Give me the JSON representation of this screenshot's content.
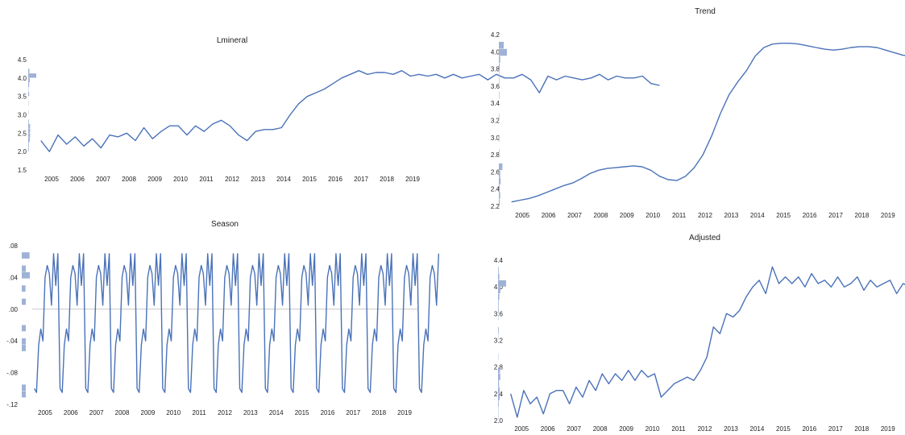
{
  "chart_data": [
    {
      "id": "lmineral",
      "type": "line",
      "title": "Lmineral",
      "xlabel": "",
      "ylabel": "",
      "xlim": [
        2004.5,
        2019.5
      ],
      "ylim": [
        1.5,
        4.5
      ],
      "yticks": [
        "1.5",
        "2.0",
        "2.5",
        "3.0",
        "3.5",
        "4.0",
        "4.5"
      ],
      "xticks": [
        "2005",
        "2006",
        "2007",
        "2008",
        "2009",
        "2010",
        "2011",
        "2012",
        "2013",
        "2014",
        "2015",
        "2016",
        "2017",
        "2018",
        "2019"
      ],
      "marginal_histogram": true,
      "series_color": "#4a72b8",
      "series": [
        {
          "x_start": 2004.583,
          "x_step": 0.3333,
          "values": [
            2.3,
            2.0,
            2.45,
            2.2,
            2.4,
            2.15,
            2.35,
            2.1,
            2.45,
            2.4,
            2.5,
            2.3,
            2.65,
            2.35,
            2.55,
            2.7,
            2.7,
            2.45,
            2.7,
            2.55,
            2.75,
            2.85,
            2.7,
            2.45,
            2.3,
            2.55,
            2.6,
            2.6,
            2.65,
            3.0,
            3.3,
            3.5,
            3.6,
            3.7,
            3.85,
            4.0,
            4.1,
            4.2,
            4.1,
            4.15,
            4.15,
            4.1,
            4.2,
            4.05,
            4.1,
            4.05,
            4.1,
            4.0,
            4.1,
            4.0,
            4.05,
            4.1,
            3.95,
            4.1,
            4.0,
            4.0,
            4.1,
            3.95,
            3.6,
            4.05,
            3.95,
            4.05,
            4.0,
            3.95,
            4.0,
            4.1,
            3.95,
            4.05,
            4.0,
            4.0,
            4.05,
            3.85,
            3.8
          ]
        }
      ]
    },
    {
      "id": "trend",
      "type": "line",
      "title": "Trend",
      "xlabel": "",
      "ylabel": "",
      "xlim": [
        2004.5,
        2019.5
      ],
      "ylim": [
        2.2,
        4.2
      ],
      "yticks": [
        "2.2",
        "2.4",
        "2.6",
        "2.8",
        "3.0",
        "3.2",
        "3.4",
        "3.6",
        "3.8",
        "4.0",
        "4.2"
      ],
      "xticks": [
        "2005",
        "2006",
        "2007",
        "2008",
        "2009",
        "2010",
        "2011",
        "2012",
        "2013",
        "2014",
        "2015",
        "2016",
        "2017",
        "2018",
        "2019"
      ],
      "marginal_histogram": true,
      "series_color": "#4a72b8",
      "series": [
        {
          "x_start": 2004.583,
          "x_step": 0.3333,
          "values": [
            2.25,
            2.27,
            2.29,
            2.32,
            2.36,
            2.4,
            2.44,
            2.47,
            2.52,
            2.58,
            2.62,
            2.64,
            2.65,
            2.66,
            2.67,
            2.66,
            2.62,
            2.55,
            2.51,
            2.5,
            2.55,
            2.65,
            2.8,
            3.02,
            3.28,
            3.5,
            3.65,
            3.78,
            3.95,
            4.05,
            4.09,
            4.1,
            4.1,
            4.09,
            4.07,
            4.05,
            4.03,
            4.02,
            4.03,
            4.05,
            4.06,
            4.06,
            4.05,
            4.02,
            3.99,
            3.96,
            3.95,
            3.95,
            3.95,
            3.94,
            3.95,
            3.96,
            3.96,
            3.96,
            3.96,
            3.96,
            3.97,
            3.96,
            3.93,
            3.88,
            3.85,
            3.82
          ]
        }
      ]
    },
    {
      "id": "season",
      "type": "line",
      "title": "Season",
      "xlabel": "",
      "ylabel": "",
      "xlim": [
        2004.5,
        2019.5
      ],
      "ylim": [
        -0.12,
        0.08
      ],
      "yticks": [
        ".08",
        ".04",
        ".00",
        "-.04",
        "-.08",
        "-.12"
      ],
      "xticks": [
        "2005",
        "2006",
        "2007",
        "2008",
        "2009",
        "2010",
        "2011",
        "2012",
        "2013",
        "2014",
        "2015",
        "2016",
        "2017",
        "2018",
        "2019"
      ],
      "zero_line": true,
      "marginal_histogram": true,
      "series_color": "#4a72b8",
      "series": [
        {
          "x_start": 2004.583,
          "x_step": 0.0833,
          "values": [
            -0.1,
            -0.105,
            -0.045,
            -0.025,
            -0.04,
            0.04,
            0.055,
            0.045,
            0.005,
            0.07,
            0.03,
            0.07,
            -0.1,
            -0.105,
            -0.045,
            -0.025,
            -0.04,
            0.04,
            0.055,
            0.045,
            0.005,
            0.07,
            0.03,
            0.07,
            -0.1,
            -0.105,
            -0.045,
            -0.025,
            -0.04,
            0.04,
            0.055,
            0.045,
            0.005,
            0.07,
            0.03,
            0.07,
            -0.1,
            -0.105,
            -0.045,
            -0.025,
            -0.04,
            0.04,
            0.055,
            0.045,
            0.005,
            0.07,
            0.03,
            0.07,
            -0.1,
            -0.105,
            -0.045,
            -0.025,
            -0.04,
            0.04,
            0.055,
            0.045,
            0.005,
            0.07,
            0.03,
            0.07,
            -0.1,
            -0.105,
            -0.045,
            -0.025,
            -0.04,
            0.04,
            0.055,
            0.045,
            0.005,
            0.07,
            0.03,
            0.07,
            -0.1,
            -0.105,
            -0.045,
            -0.025,
            -0.04,
            0.04,
            0.055,
            0.045,
            0.005,
            0.07,
            0.03,
            0.07,
            -0.1,
            -0.105,
            -0.045,
            -0.025,
            -0.04,
            0.04,
            0.055,
            0.045,
            0.005,
            0.07,
            0.03,
            0.07,
            -0.1,
            -0.105,
            -0.045,
            -0.025,
            -0.04,
            0.04,
            0.055,
            0.045,
            0.005,
            0.07,
            0.03,
            0.07,
            -0.1,
            -0.105,
            -0.045,
            -0.025,
            -0.04,
            0.04,
            0.055,
            0.045,
            0.005,
            0.07,
            0.03,
            0.07,
            -0.1,
            -0.105,
            -0.045,
            -0.025,
            -0.04,
            0.04,
            0.055,
            0.045,
            0.005,
            0.07,
            0.03,
            0.07,
            -0.1,
            -0.105,
            -0.045,
            -0.025,
            -0.04,
            0.04,
            0.055,
            0.045,
            0.005,
            0.07,
            0.03,
            0.07,
            -0.1,
            -0.105,
            -0.045,
            -0.025,
            -0.04,
            0.04,
            0.055,
            0.045,
            0.005,
            0.07,
            0.03,
            0.07,
            -0.1,
            -0.105,
            -0.045,
            -0.025,
            -0.04,
            0.04,
            0.055,
            0.045,
            0.005,
            0.07,
            0.03,
            0.07,
            -0.1,
            -0.105,
            -0.045,
            -0.025,
            -0.04,
            0.04,
            0.055,
            0.045,
            0.005,
            0.07,
            0.03,
            0.07,
            -0.1,
            -0.105,
            -0.045,
            -0.025,
            -0.04,
            0.04,
            0.055,
            0.045,
            0.005,
            0.07
          ]
        }
      ]
    },
    {
      "id": "adjusted",
      "type": "line",
      "title": "Adjusted",
      "xlabel": "",
      "ylabel": "",
      "xlim": [
        2004.5,
        2019.5
      ],
      "ylim": [
        2.0,
        4.4
      ],
      "yticks": [
        "2.0",
        "2.4",
        "2.8",
        "3.2",
        "3.6",
        "4.0",
        "4.4"
      ],
      "xticks": [
        "2005",
        "2006",
        "2007",
        "2008",
        "2009",
        "2010",
        "2011",
        "2012",
        "2013",
        "2014",
        "2015",
        "2016",
        "2017",
        "2018",
        "2019"
      ],
      "marginal_histogram": true,
      "series_color": "#4a72b8",
      "series": [
        {
          "x_start": 2004.583,
          "x_step": 0.25,
          "values": [
            2.4,
            2.05,
            2.45,
            2.25,
            2.35,
            2.1,
            2.4,
            2.45,
            2.45,
            2.25,
            2.5,
            2.35,
            2.6,
            2.45,
            2.7,
            2.55,
            2.7,
            2.6,
            2.75,
            2.6,
            2.75,
            2.65,
            2.7,
            2.35,
            2.45,
            2.55,
            2.6,
            2.65,
            2.6,
            2.75,
            2.95,
            3.4,
            3.3,
            3.6,
            3.55,
            3.65,
            3.85,
            4.0,
            4.1,
            3.9,
            4.3,
            4.05,
            4.15,
            4.05,
            4.15,
            4.0,
            4.2,
            4.05,
            4.1,
            4.0,
            4.15,
            4.0,
            4.05,
            4.15,
            3.95,
            4.1,
            4.0,
            4.05,
            4.1,
            3.9,
            4.05,
            4.0,
            4.1,
            3.95,
            3.4,
            4.05,
            3.9,
            4.05,
            3.95,
            4.0,
            4.05,
            3.95,
            4.0,
            4.1,
            3.95,
            4.05,
            3.95,
            4.1,
            3.95,
            3.7,
            3.8
          ]
        }
      ]
    }
  ]
}
